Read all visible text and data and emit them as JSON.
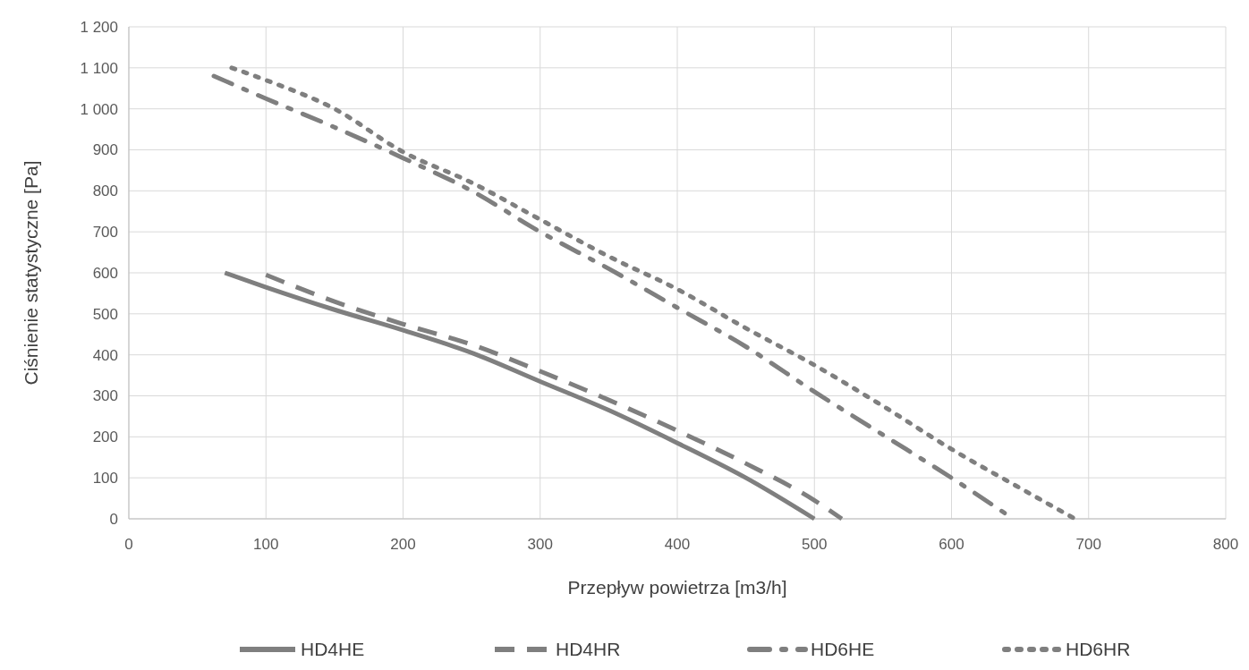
{
  "chart_data": {
    "type": "line",
    "xlabel": "Przepływ powietrza [m3/h]",
    "ylabel": "Ciśnienie statystyczne [Pa]",
    "xlim": [
      0,
      800
    ],
    "xticks": [
      0,
      100,
      200,
      300,
      400,
      500,
      600,
      700,
      800
    ],
    "ylim": [
      0,
      1200
    ],
    "yticks": [
      0,
      100,
      200,
      300,
      400,
      500,
      600,
      700,
      800,
      900,
      {
        "value": 1000,
        "label": "1 000"
      },
      {
        "value": 1100,
        "label": "1 100"
      },
      {
        "value": 1200,
        "label": "1 200"
      }
    ],
    "grid": true,
    "legend": "bottom",
    "series": [
      {
        "name": "HD4HE",
        "color": "#7f7f7f",
        "line_style": "solid",
        "x": [
          70,
          100,
          150,
          200,
          250,
          300,
          350,
          400,
          450,
          500
        ],
        "values": [
          600,
          565,
          510,
          460,
          405,
          335,
          265,
          185,
          100,
          0
        ]
      },
      {
        "name": "HD4HR",
        "color": "#7f7f7f",
        "line_style": "dashed",
        "x": [
          100,
          150,
          200,
          250,
          300,
          350,
          400,
          450,
          500,
          520
        ],
        "values": [
          595,
          530,
          475,
          425,
          360,
          290,
          215,
          135,
          45,
          0
        ]
      },
      {
        "name": "HD6HE",
        "color": "#7f7f7f",
        "line_style": "dashdot",
        "x": [
          62,
          100,
          150,
          200,
          250,
          300,
          350,
          400,
          450,
          500,
          550,
          600,
          645
        ],
        "values": [
          1080,
          1025,
          955,
          880,
          800,
          700,
          610,
          515,
          420,
          310,
          205,
          100,
          0
        ]
      },
      {
        "name": "HD6HR",
        "color": "#7f7f7f",
        "line_style": "dotted",
        "x": [
          75,
          100,
          150,
          200,
          250,
          300,
          350,
          400,
          450,
          500,
          550,
          600,
          650,
          690
        ],
        "values": [
          1100,
          1070,
          1000,
          895,
          820,
          730,
          640,
          560,
          465,
          375,
          275,
          170,
          75,
          0
        ]
      }
    ]
  }
}
